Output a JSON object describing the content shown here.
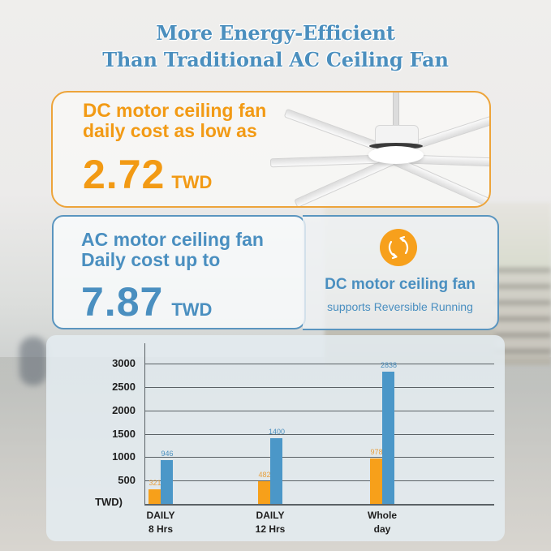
{
  "title": {
    "line1": "More Energy-Efficient",
    "line2": "Than Traditional AC Ceiling Fan"
  },
  "dc_card": {
    "highlight": "DC",
    "line1_rest": " motor ceiling fan",
    "line2": "daily cost as low as",
    "value": "2.72",
    "unit": "TWD"
  },
  "ac_card": {
    "highlight": "AC",
    "line1_rest": " motor ceiling fan",
    "line2": "Daily cost up to",
    "value": "7.87",
    "unit": "TWD"
  },
  "feature_card": {
    "icon": "reverse-rotation-icon",
    "title": "DC motor ceiling fan",
    "subtitle": "supports Reversible Running"
  },
  "colors": {
    "title_blue": "#4b8fbe",
    "dc_orange": "#f7a01a",
    "ac_blue": "#4b97c8"
  },
  "chart_data": {
    "type": "bar",
    "title": "",
    "xlabel": "",
    "ylabel": "TWD)",
    "ylim": [
      0,
      3000
    ],
    "yticks": [
      500,
      1000,
      1500,
      2000,
      2500,
      3000
    ],
    "ytick_labels": [
      "500",
      "1000",
      "1500",
      "2000",
      "2500",
      "3000"
    ],
    "grid": true,
    "legend": null,
    "categories": [
      "DAILY\n8 Hrs",
      "DAILY\n12 Hrs",
      "Whole\nday"
    ],
    "category_lines": [
      [
        "DAILY",
        "8 Hrs"
      ],
      [
        "DAILY",
        "12 Hrs"
      ],
      [
        "Whole",
        "day"
      ]
    ],
    "series": [
      {
        "name": "DC motor ceiling fan",
        "color": "#f7a01a",
        "values": [
          321,
          482,
          978
        ],
        "labels": [
          "321",
          "482",
          "978"
        ]
      },
      {
        "name": "AC motor ceiling fan",
        "color": "#4b97c8",
        "values": [
          946,
          1400,
          2838
        ],
        "labels": [
          "946",
          "1400",
          "2838"
        ]
      }
    ]
  }
}
